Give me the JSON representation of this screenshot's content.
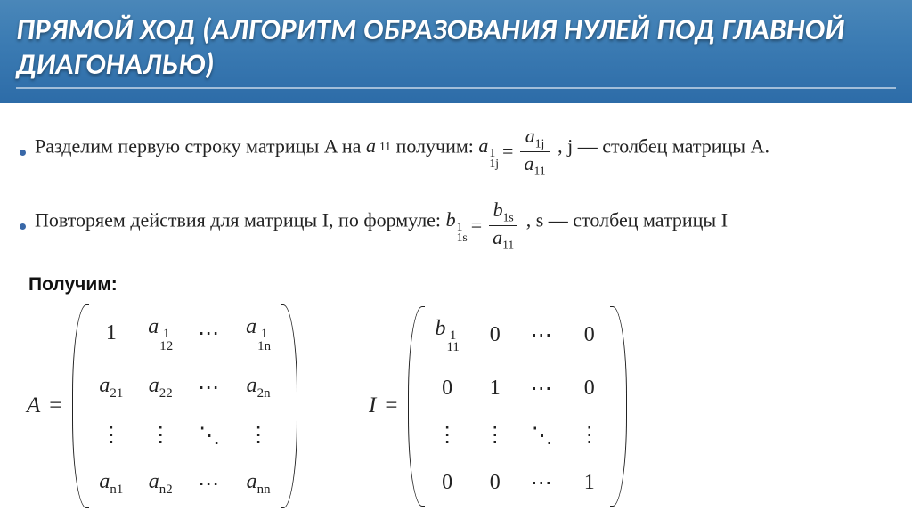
{
  "colors": {
    "header_gradient_top": "#4a87b9",
    "header_gradient_mid": "#3d7db4",
    "header_gradient_bot": "#2d6ca8",
    "header_text": "#ffffff",
    "bullet_dot": "#3968a8",
    "body_text": "#222222",
    "background": "#ffffff"
  },
  "header": {
    "title": "ПРЯМОЙ ХОД (АЛГОРИТМ ОБРАЗОВАНИЯ НУЛЕЙ ПОД ГЛАВНОЙ ДИАГОНАЛЬЮ)",
    "title_fontsize": 33,
    "title_style": "italic bold"
  },
  "bullets": [
    {
      "text_pre": "Разделим первую строку матрицы A на ",
      "divisor_base": "a",
      "divisor_sub": "11",
      "text_mid": " получим: ",
      "lhs_base": "a",
      "lhs_sub": "1j",
      "lhs_sup": "1",
      "eq": " = ",
      "frac_num_base": "a",
      "frac_num_sub": "1j",
      "frac_den_base": "a",
      "frac_den_sub": "11",
      "text_post": " , j — столбец матрицы A."
    },
    {
      "text_pre": "Повторяем действия для матрицы I, по формуле: ",
      "lhs_base": "b",
      "lhs_sub": "1s",
      "lhs_sup": "1",
      "eq": " = ",
      "frac_num_base": "b",
      "frac_num_sub": "1s",
      "frac_den_base": "a",
      "frac_den_sub": "11",
      "text_post": " , s — столбец матрицы I"
    }
  ],
  "result_label": "Получим:",
  "matrixA": {
    "label": "A",
    "eq": "=",
    "rows": [
      [
        {
          "type": "plain",
          "val": "1"
        },
        {
          "type": "subsup",
          "base": "a",
          "sub": "12",
          "sup": "1"
        },
        {
          "type": "cdots",
          "val": "⋯"
        },
        {
          "type": "subsup",
          "base": "a",
          "sub": "1n",
          "sup": "1"
        }
      ],
      [
        {
          "type": "sub",
          "base": "a",
          "sub": "21"
        },
        {
          "type": "sub",
          "base": "a",
          "sub": "22"
        },
        {
          "type": "cdots",
          "val": "⋯"
        },
        {
          "type": "sub",
          "base": "a",
          "sub": "2n"
        }
      ],
      [
        {
          "type": "vdots",
          "val": "⋮"
        },
        {
          "type": "vdots",
          "val": "⋮"
        },
        {
          "type": "ddots",
          "val": "⋱"
        },
        {
          "type": "vdots",
          "val": "⋮"
        }
      ],
      [
        {
          "type": "sub",
          "base": "a",
          "sub": "n1"
        },
        {
          "type": "sub",
          "base": "a",
          "sub": "n2"
        },
        {
          "type": "cdots",
          "val": "⋯"
        },
        {
          "type": "sub",
          "base": "a",
          "sub": "nn"
        }
      ]
    ]
  },
  "matrixI": {
    "label": "I",
    "eq": "=",
    "rows": [
      [
        {
          "type": "subsup",
          "base": "b",
          "sub": "11",
          "sup": "1"
        },
        {
          "type": "plain",
          "val": "0"
        },
        {
          "type": "cdots",
          "val": "⋯"
        },
        {
          "type": "plain",
          "val": "0"
        }
      ],
      [
        {
          "type": "plain",
          "val": "0"
        },
        {
          "type": "plain",
          "val": "1"
        },
        {
          "type": "cdots",
          "val": "⋯"
        },
        {
          "type": "plain",
          "val": "0"
        }
      ],
      [
        {
          "type": "vdots",
          "val": "⋮"
        },
        {
          "type": "vdots",
          "val": "⋮"
        },
        {
          "type": "ddots",
          "val": "⋱"
        },
        {
          "type": "vdots",
          "val": "⋮"
        }
      ],
      [
        {
          "type": "plain",
          "val": "0"
        },
        {
          "type": "plain",
          "val": "0"
        },
        {
          "type": "cdots",
          "val": "⋯"
        },
        {
          "type": "plain",
          "val": "1"
        }
      ]
    ]
  }
}
